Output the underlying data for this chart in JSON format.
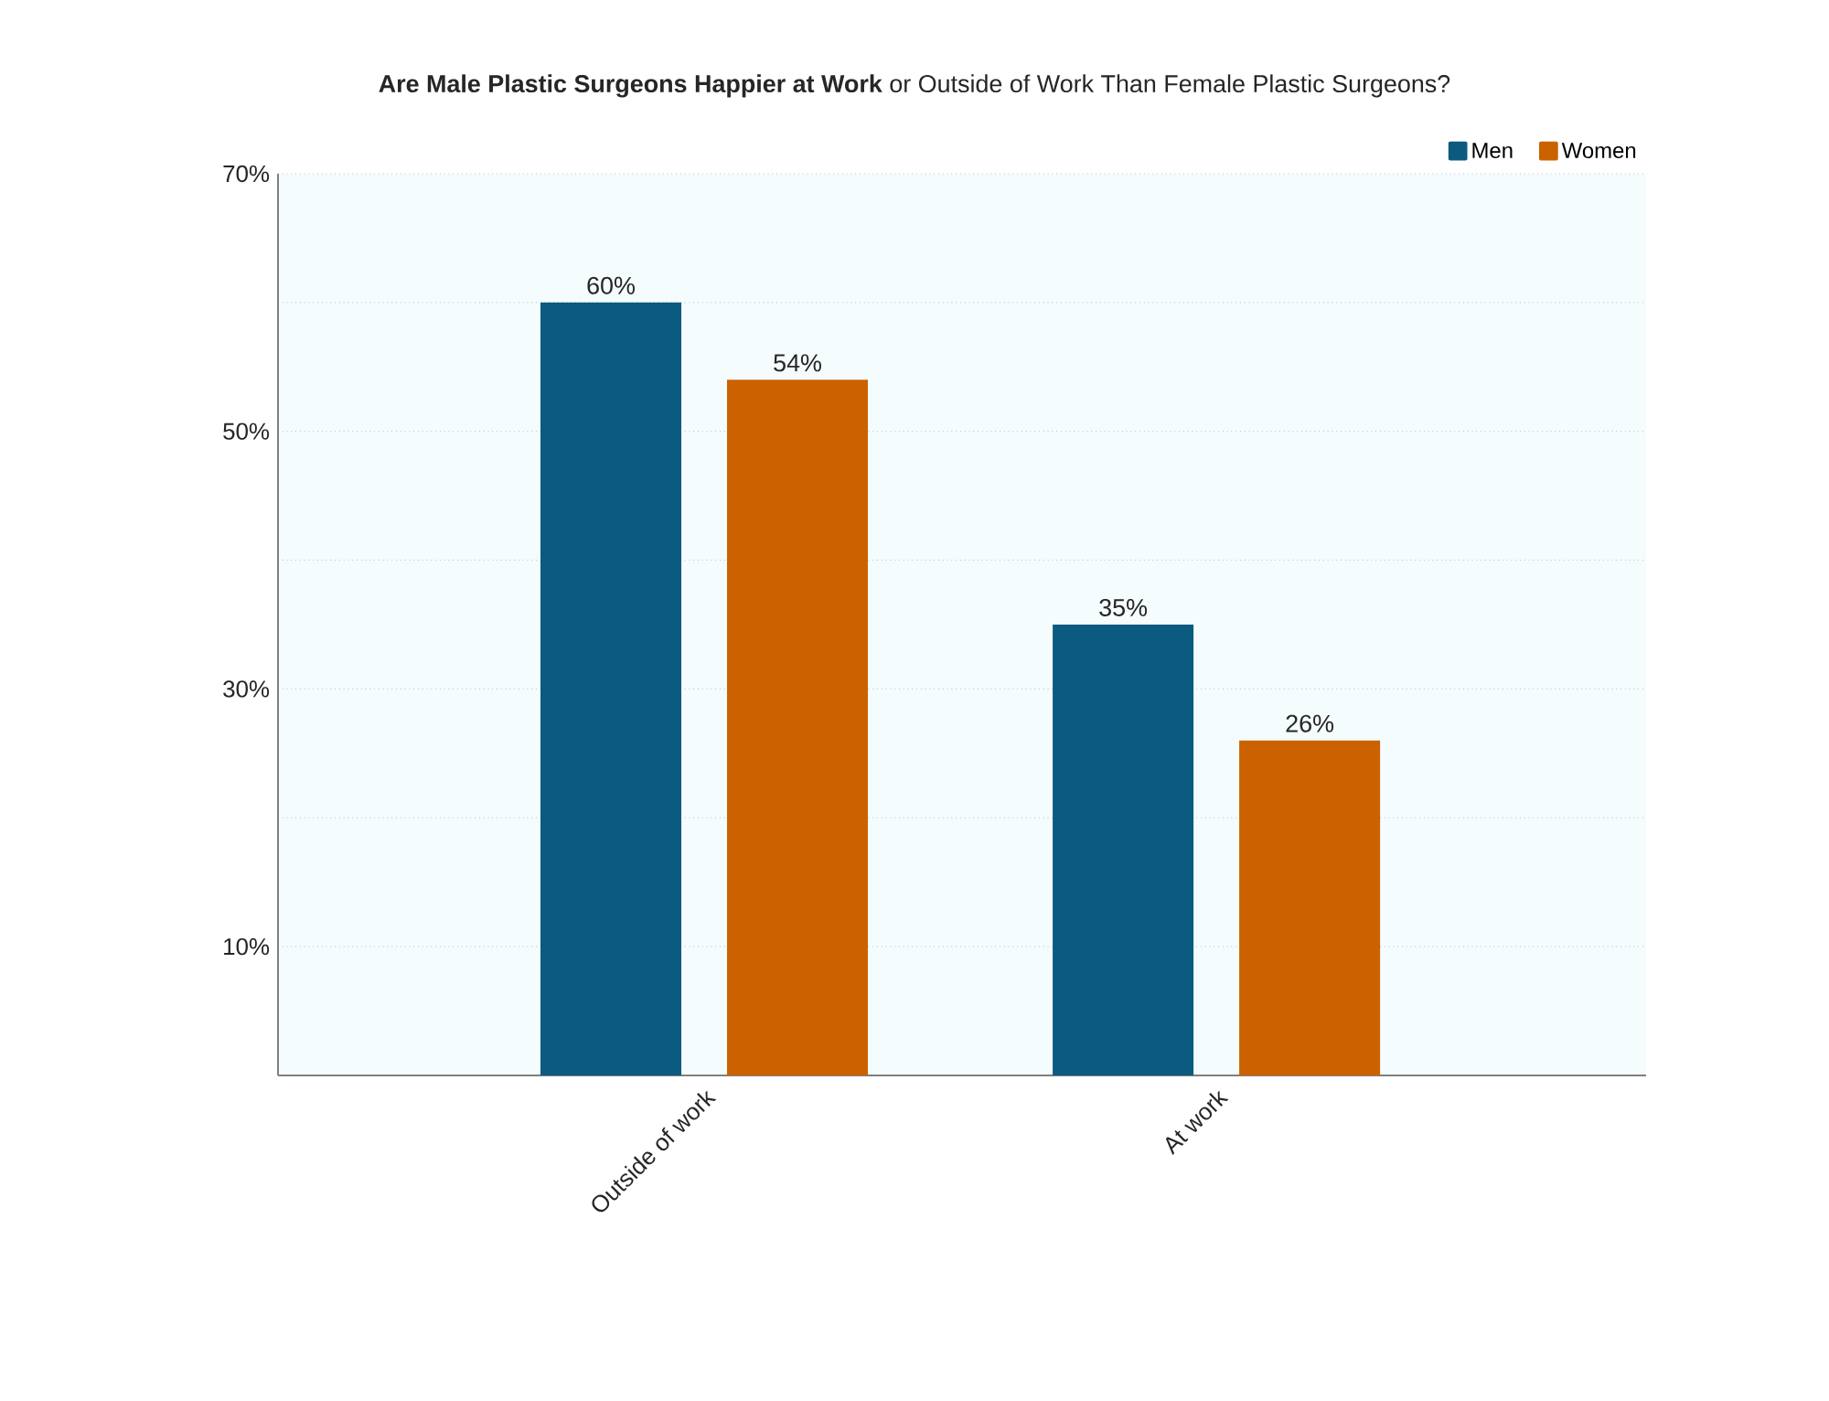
{
  "chart_data": {
    "type": "bar",
    "title": "**Are Male Plastic Surgeons Happier at Work** or Outside of Work Than Female Plastic Surgeons?",
    "categories": [
      "Outside of work",
      "At work"
    ],
    "series": [
      {
        "name": "Men",
        "color": "#0b5a80",
        "values": [
          60,
          35
        ],
        "value_labels": [
          "60%",
          "35%"
        ]
      },
      {
        "name": "Women",
        "color": "#cc6100",
        "values": [
          54,
          26
        ],
        "value_labels": [
          "54%",
          "26%"
        ]
      }
    ],
    "ylim": [
      0,
      70
    ],
    "yticks": [
      {
        "value": 10,
        "label": "10%"
      },
      {
        "value": 20,
        "label": null
      },
      {
        "value": 30,
        "label": "30%"
      },
      {
        "value": 40,
        "label": null
      },
      {
        "value": 50,
        "label": "50%"
      },
      {
        "value": 60,
        "label": null
      },
      {
        "value": 70,
        "label": "70%"
      }
    ],
    "grid": "y",
    "legend": "top right"
  }
}
